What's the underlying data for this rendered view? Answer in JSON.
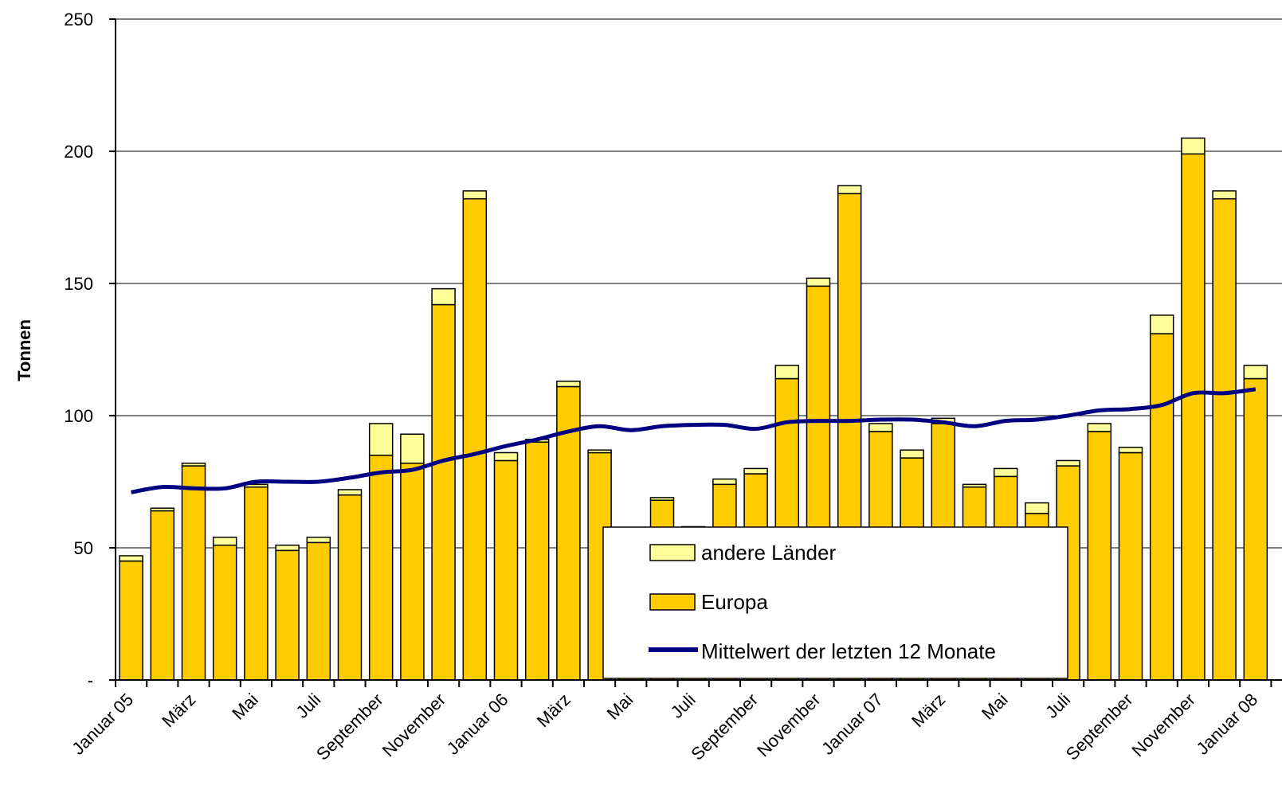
{
  "chart_data": {
    "type": "bar",
    "stacked": true,
    "ylabel": "Tonnen",
    "ylim": [
      0,
      250
    ],
    "yticks": [
      {
        "value": 0,
        "label": "-"
      },
      {
        "value": 50,
        "label": "50"
      },
      {
        "value": 100,
        "label": "100"
      },
      {
        "value": 150,
        "label": "150"
      },
      {
        "value": 200,
        "label": "200"
      },
      {
        "value": 250,
        "label": "250"
      }
    ],
    "grid": true,
    "legend_position": "bottom-center",
    "x_tick_labels": [
      {
        "index": 0,
        "label": "Januar 05"
      },
      {
        "index": 2,
        "label": "März"
      },
      {
        "index": 4,
        "label": "Mai"
      },
      {
        "index": 6,
        "label": "Juli"
      },
      {
        "index": 8,
        "label": "September"
      },
      {
        "index": 10,
        "label": "November"
      },
      {
        "index": 12,
        "label": "Januar 06"
      },
      {
        "index": 14,
        "label": "März"
      },
      {
        "index": 16,
        "label": "Mai"
      },
      {
        "index": 18,
        "label": "Juli"
      },
      {
        "index": 20,
        "label": "September"
      },
      {
        "index": 22,
        "label": "November"
      },
      {
        "index": 24,
        "label": "Januar 07"
      },
      {
        "index": 26,
        "label": "März"
      },
      {
        "index": 28,
        "label": "Mai"
      },
      {
        "index": 30,
        "label": "Juli"
      },
      {
        "index": 32,
        "label": "September"
      },
      {
        "index": 34,
        "label": "November"
      },
      {
        "index": 36,
        "label": "Januar 08"
      }
    ],
    "series": [
      {
        "name": "Europa",
        "color": "#ffcc00",
        "values": [
          45,
          64,
          81,
          51,
          73,
          49,
          52,
          70,
          85,
          82,
          142,
          182,
          83,
          90,
          111,
          86,
          47,
          68,
          57,
          74,
          78,
          114,
          149,
          184,
          94,
          84,
          97,
          73,
          77,
          63,
          81,
          94,
          86,
          131,
          199,
          182,
          114
        ]
      },
      {
        "name": "andere Länder",
        "color": "#ffff99",
        "values": [
          2,
          1,
          1,
          3,
          1,
          2,
          2,
          2,
          12,
          11,
          6,
          3,
          3,
          1,
          2,
          1,
          1,
          1,
          1,
          2,
          2,
          5,
          3,
          3,
          3,
          3,
          2,
          1,
          3,
          4,
          2,
          3,
          2,
          7,
          6,
          3,
          5
        ]
      },
      {
        "name": "Mittelwert der letzten 12 Monate",
        "type": "line",
        "color": "#000080",
        "values": [
          71,
          73,
          72.5,
          72.5,
          75,
          75,
          75,
          76.5,
          78.5,
          79.5,
          83,
          85.5,
          88.5,
          91,
          94,
          96,
          94.5,
          96,
          96.5,
          96.5,
          95,
          97.5,
          98,
          98,
          98.5,
          98.5,
          97.5,
          96,
          98,
          98.5,
          100,
          102,
          102.5,
          104,
          108.5,
          108.5,
          110
        ]
      }
    ]
  }
}
